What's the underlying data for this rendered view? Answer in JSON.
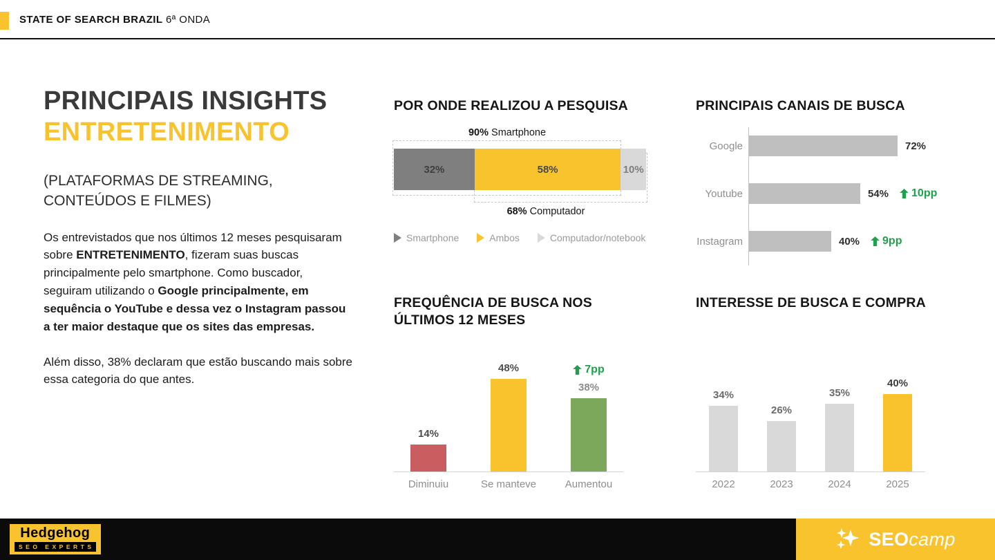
{
  "header": {
    "title_bold": "STATE OF SEARCH BRAZIL",
    "title_rest": "6ª ONDA"
  },
  "colors": {
    "yellow": "#F8C32C",
    "green": "#1FA04A",
    "dark_gray": "#7F7F7F",
    "light_gray": "#D9D9D9",
    "bar_gray": "#BFBFBF"
  },
  "insights": {
    "title": "PRINCIPAIS INSIGHTS",
    "subtitle": "ENTRETENIMENTO",
    "category_note": "(PLATAFORMAS DE STREAMING, CONTEÚDOS E FILMES)",
    "paragraph1": [
      {
        "text": "Os entrevistados que nos últimos 12 meses pesquisaram sobre ",
        "bold": false
      },
      {
        "text": "ENTRETENIMENTO",
        "bold": true
      },
      {
        "text": ", fizeram suas buscas principalmente pelo smartphone. Como buscador, seguiram utilizando o ",
        "bold": false
      },
      {
        "text": "Google principalmente, em sequência o YouTube e dessa vez o Instagram passou a ter maior destaque que os sites das empresas.",
        "bold": true
      }
    ],
    "paragraph2": "Além disso, 38% declaram que estão buscando mais sobre essa categoria do que antes."
  },
  "chart_data": [
    {
      "type": "bar",
      "subtype": "stacked-horizontal",
      "title": "POR ONDE REALIZOU A PESQUISA",
      "segments": [
        {
          "label": "Smartphone",
          "value": 32,
          "color": "#7F7F7F",
          "text_color": "#3f3f3f"
        },
        {
          "label": "Ambos",
          "value": 58,
          "color": "#F8C32C",
          "text_color": "#4a4a4a"
        },
        {
          "label": "Computador/notebook",
          "value": 10,
          "color": "#D9D9D9",
          "text_color": "#7f7f7f"
        }
      ],
      "annotation_top": {
        "value": "90%",
        "label": "Smartphone",
        "span_pct": 90
      },
      "annotation_bottom": {
        "value": "68%",
        "label": "Computador",
        "span_pct": 68
      },
      "legend": [
        {
          "label": "Smartphone",
          "color": "#7F7F7F"
        },
        {
          "label": "Ambos",
          "color": "#F8C32C"
        },
        {
          "label": "Computador/notebook",
          "color": "#D9D9D9"
        }
      ],
      "xlim": [
        0,
        100
      ]
    },
    {
      "type": "bar",
      "subtype": "horizontal",
      "title": "PRINCIPAIS CANAIS DE BUSCA",
      "categories": [
        "Google",
        "Youtube",
        "Instagram"
      ],
      "values": [
        72,
        54,
        40
      ],
      "value_labels": [
        "72%",
        "54%",
        "40%"
      ],
      "deltas": [
        null,
        "10pp",
        "9pp"
      ],
      "bar_color": "#BFBFBF",
      "delta_color": "#1FA04A",
      "xlim": [
        0,
        100
      ],
      "grid": false
    },
    {
      "type": "bar",
      "subtype": "vertical",
      "title": "FREQUÊNCIA DE BUSCA NOS ÚLTIMOS 12 MESES",
      "categories": [
        "Diminuiu",
        "Se manteve",
        "Aumentou"
      ],
      "values": [
        14,
        48,
        38
      ],
      "value_labels": [
        "14%",
        "48%",
        "38%"
      ],
      "value_label_colors": [
        "#4d4d4d",
        "#4d4d4d",
        "#8c8c8c"
      ],
      "colors": [
        "#C95D5F",
        "#F8C32C",
        "#7BA85B"
      ],
      "deltas": [
        null,
        null,
        "7pp"
      ],
      "delta_color": "#1FA04A",
      "ylim": [
        0,
        70
      ],
      "grid": false
    },
    {
      "type": "bar",
      "subtype": "vertical",
      "title": "INTERESSE DE BUSCA E COMPRA",
      "categories": [
        "2022",
        "2023",
        "2024",
        "2025"
      ],
      "values": [
        34,
        26,
        35,
        40
      ],
      "value_labels": [
        "34%",
        "26%",
        "35%",
        "40%"
      ],
      "value_label_colors": [
        "#6b6b6b",
        "#6b6b6b",
        "#6b6b6b",
        "#3d3d3d"
      ],
      "colors": [
        "#D9D9D9",
        "#D9D9D9",
        "#D9D9D9",
        "#F8C32C"
      ],
      "deltas": [
        null,
        null,
        null,
        null
      ],
      "delta_color": "#1FA04A",
      "ylim": [
        0,
        70
      ],
      "grid": false
    }
  ],
  "footer": {
    "hedgehog": {
      "name": "Hedgehog",
      "tag": "SEO EXPERTS"
    },
    "seocamp": {
      "seo": "SEO",
      "camp": "camp"
    }
  },
  "icons": {
    "delta_arrow": "up-arrow-icon",
    "legend_marker": "play-triangle-icon",
    "seocamp_logo": "sparkles-icon"
  }
}
